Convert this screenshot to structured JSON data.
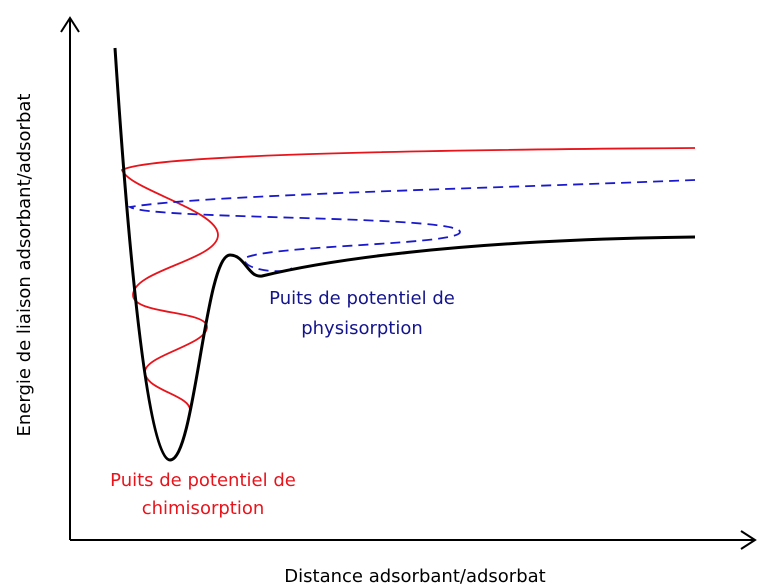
{
  "axes": {
    "y_label": "Energie de liaison adsorbant/adsorbat",
    "x_label": "Distance adsorbant/adsorbat"
  },
  "annotations": [
    {
      "lines": [
        "Puits de potentiel de",
        "physisorption"
      ]
    },
    {
      "lines": [
        "Puits de potentiel de",
        "chimisorption"
      ]
    }
  ]
}
